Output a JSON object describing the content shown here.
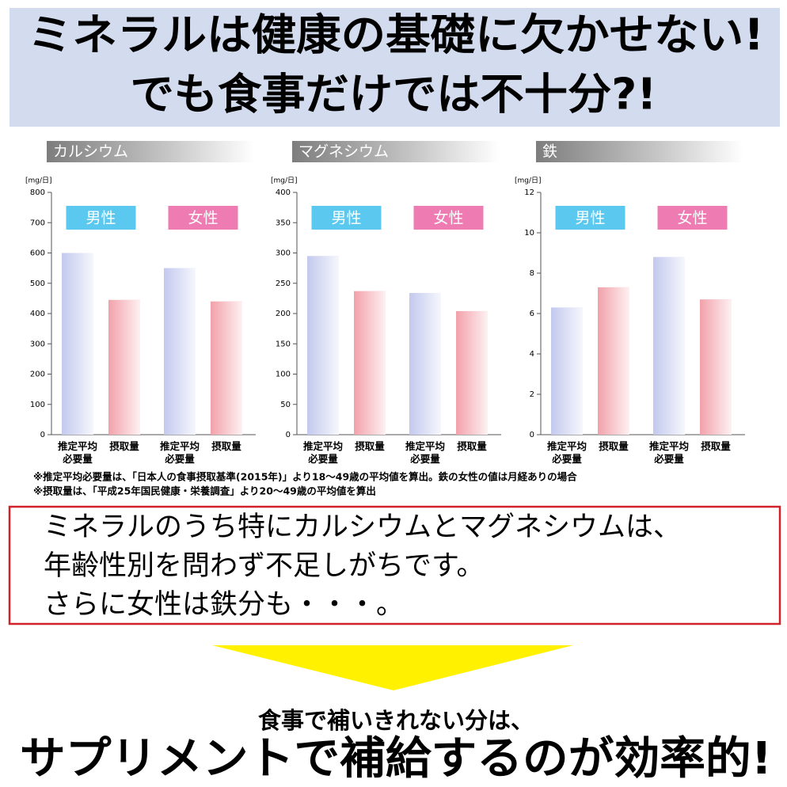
{
  "headline": {
    "line1": "ミネラルは健康の基礎に欠かせない!",
    "line2": "でも食事だけでは不十分?!"
  },
  "chart_data": [
    {
      "type": "bar",
      "title": "カルシウム",
      "ylabel": "[mg/日]",
      "ylim": [
        0,
        800
      ],
      "yticks": [
        0,
        100,
        200,
        300,
        400,
        500,
        600,
        700,
        800
      ],
      "groups": [
        "男性",
        "女性"
      ],
      "group_colors": [
        "#5bc8f0",
        "#ee7cb2"
      ],
      "categories": [
        "推定平均必要量",
        "摂取量",
        "推定平均必要量",
        "摂取量"
      ],
      "values": [
        600,
        445,
        550,
        440
      ],
      "colors": [
        "#c3c9ee",
        "#f2a2aa",
        "#c3c9ee",
        "#f2a2aa"
      ]
    },
    {
      "type": "bar",
      "title": "マグネシウム",
      "ylabel": "[mg/日]",
      "ylim": [
        0,
        400
      ],
      "yticks": [
        0,
        50,
        100,
        150,
        200,
        250,
        300,
        350,
        400
      ],
      "groups": [
        "男性",
        "女性"
      ],
      "group_colors": [
        "#5bc8f0",
        "#ee7cb2"
      ],
      "categories": [
        "推定平均必要量",
        "摂取量",
        "推定平均必要量",
        "摂取量"
      ],
      "values": [
        295,
        237,
        234,
        204
      ],
      "colors": [
        "#c3c9ee",
        "#f2a2aa",
        "#c3c9ee",
        "#f2a2aa"
      ]
    },
    {
      "type": "bar",
      "title": "鉄",
      "ylabel": "[mg/日]",
      "ylim": [
        0,
        12
      ],
      "yticks": [
        0,
        2,
        4,
        6,
        8,
        10,
        12
      ],
      "groups": [
        "男性",
        "女性"
      ],
      "group_colors": [
        "#5bc8f0",
        "#ee7cb2"
      ],
      "categories": [
        "推定平均必要量",
        "摂取量",
        "推定平均必要量",
        "摂取量"
      ],
      "values": [
        6.3,
        7.3,
        8.8,
        6.7
      ],
      "colors": [
        "#c3c9ee",
        "#f2a2aa",
        "#c3c9ee",
        "#f2a2aa"
      ]
    }
  ],
  "notes": [
    "※推定平均必要量は、「日本人の食事摂取基準(2015年)」より18〜49歳の平均値を算出。鉄の女性の値は月経ありの場合",
    "※摂取量は、「平成25年国民健康・栄養調査」より20〜49歳の平均値を算出"
  ],
  "message": {
    "lines": [
      "ミネラルのうち特にカルシウムとマグネシウムは、",
      "年齢性別を問わず不足しがちです。",
      "さらに女性は鉄分も・・・。"
    ]
  },
  "footer": {
    "lead": "食事で補いきれない分は、",
    "main": "サプリメントで補給するのが効率的!"
  }
}
